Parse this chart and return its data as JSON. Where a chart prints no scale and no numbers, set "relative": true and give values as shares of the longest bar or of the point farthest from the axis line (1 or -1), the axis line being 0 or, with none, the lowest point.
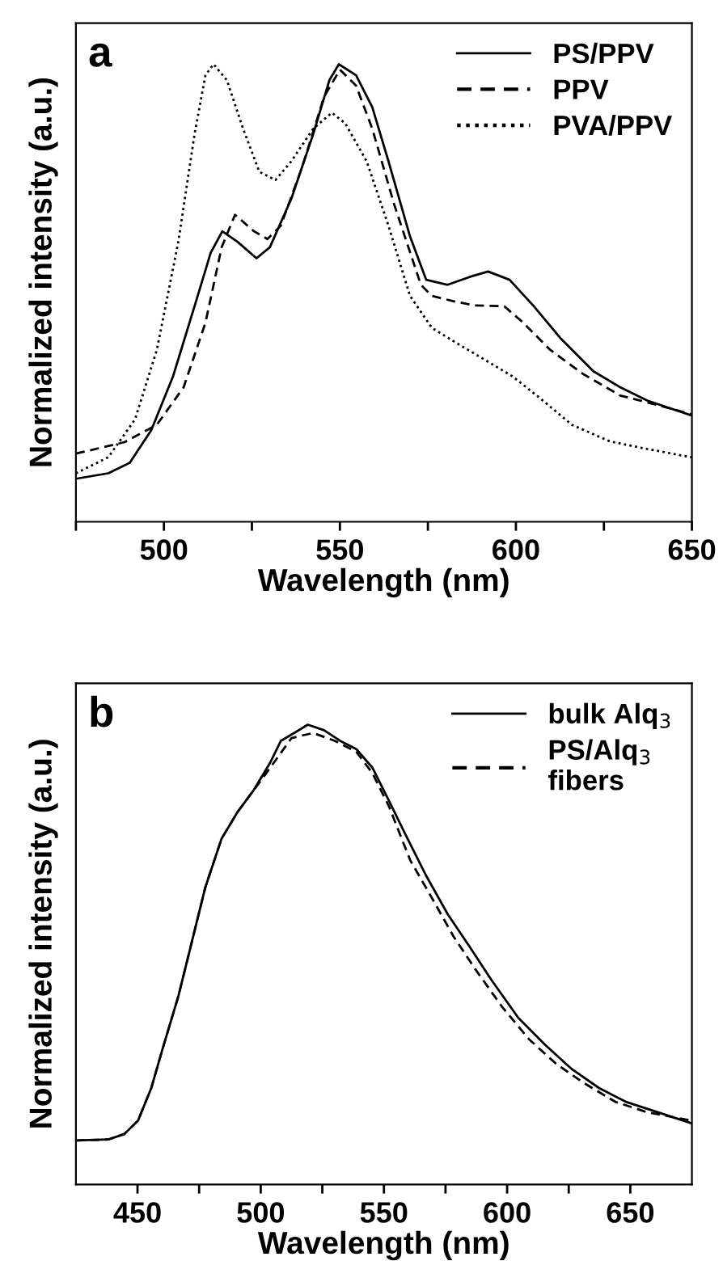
{
  "chart_data": [
    {
      "type": "line",
      "relative": true,
      "xlabel": "Wavelength (nm)",
      "ylabel": "Normalized intensity (a.u.)",
      "annotations": [
        "a"
      ],
      "legend": "top right",
      "marker": "none",
      "xlim": [
        475,
        650
      ],
      "xticks": [
        {
          "value": 475,
          "label": null
        },
        500,
        {
          "value": 525,
          "label": null
        },
        550,
        {
          "value": 575,
          "label": null
        },
        600,
        {
          "value": 625,
          "label": null
        },
        650
      ],
      "series": [
        {
          "name": "PS/PPV",
          "color": "#000000",
          "line_style": "solid",
          "x": [
            475,
            484.2,
            490.3,
            496.4,
            502.6,
            508.7,
            513.3,
            516.6,
            520.9,
            526.3,
            530.1,
            536.2,
            542.4,
            547.0,
            549.7,
            554.6,
            559.2,
            563.8,
            569.9,
            574.5,
            580.6,
            586.8,
            592.1,
            598.2,
            605.1,
            612.8,
            622.0,
            629.6,
            637.3,
            650
          ],
          "values": [
            0.094,
            0.106,
            0.129,
            0.2,
            0.318,
            0.471,
            0.588,
            0.635,
            0.612,
            0.576,
            0.6,
            0.706,
            0.847,
            0.965,
            1.0,
            0.976,
            0.906,
            0.788,
            0.624,
            0.529,
            0.518,
            0.535,
            0.547,
            0.529,
            0.471,
            0.4,
            0.329,
            0.294,
            0.265,
            0.232
          ]
        },
        {
          "name": "PPV",
          "color": "#000000",
          "line_style": "dashed",
          "x": [
            475,
            488.8,
            498,
            505.6,
            511.8,
            516.4,
            520.2,
            525.6,
            529.4,
            533.2,
            539.3,
            545.5,
            550,
            554.6,
            559.2,
            565.4,
            573,
            576.1,
            582.2,
            588.3,
            596.7,
            602.1,
            609.7,
            618.9,
            629.6,
            637.3,
            650
          ],
          "values": [
            0.149,
            0.174,
            0.212,
            0.294,
            0.435,
            0.6,
            0.671,
            0.635,
            0.618,
            0.647,
            0.776,
            0.929,
            0.988,
            0.953,
            0.859,
            0.694,
            0.518,
            0.494,
            0.482,
            0.473,
            0.471,
            0.435,
            0.376,
            0.324,
            0.276,
            0.261,
            0.235
          ]
        },
        {
          "name": "PVA/PPV",
          "color": "#000000",
          "line_style": "dotted",
          "x": [
            475,
            484.2,
            491.8,
            498,
            504.1,
            508.7,
            511.8,
            514.1,
            517.9,
            522.5,
            527.1,
            531.7,
            536.2,
            542.4,
            547.7,
            551.5,
            557.6,
            563.8,
            569.9,
            576.1,
            583.7,
            591.4,
            599,
            606.7,
            615.9,
            626.6,
            637.3,
            650
          ],
          "values": [
            0.106,
            0.141,
            0.224,
            0.376,
            0.612,
            0.847,
            0.976,
            1.0,
            0.965,
            0.859,
            0.765,
            0.747,
            0.788,
            0.859,
            0.894,
            0.871,
            0.788,
            0.647,
            0.494,
            0.424,
            0.388,
            0.353,
            0.318,
            0.271,
            0.212,
            0.176,
            0.159,
            0.141
          ]
        }
      ]
    },
    {
      "type": "line",
      "relative": true,
      "xlabel": "Wavelength (nm)",
      "ylabel": "Normalized intensity (a.u.)",
      "annotations": [
        "b"
      ],
      "legend": "top right",
      "marker": "none",
      "xlim": [
        425,
        675
      ],
      "xticks": [
        450,
        {
          "value": 475,
          "label": null
        },
        500,
        {
          "value": 525,
          "label": null
        },
        550,
        {
          "value": 575,
          "label": null
        },
        600,
        {
          "value": 625,
          "label": null
        },
        650
      ],
      "series": [
        {
          "name": "bulk Alq$_{3}$",
          "color": "#000000",
          "line_style": "solid",
          "x": [
            425,
            438.1,
            444.7,
            450.2,
            455.6,
            460,
            466.6,
            471,
            477.5,
            484.1,
            490.7,
            497.2,
            503.8,
            508.2,
            513.6,
            519.1,
            525.7,
            532.2,
            538.8,
            545.4,
            552,
            558.5,
            567.3,
            576,
            584.8,
            593.5,
            604.5,
            615.4,
            626.3,
            637.3,
            648.2,
            661.3,
            675
          ],
          "values": [
            0.096,
            0.098,
            0.11,
            0.139,
            0.21,
            0.292,
            0.41,
            0.505,
            0.646,
            0.752,
            0.811,
            0.858,
            0.917,
            0.965,
            0.982,
            1.0,
            0.988,
            0.965,
            0.947,
            0.906,
            0.835,
            0.764,
            0.67,
            0.587,
            0.517,
            0.446,
            0.363,
            0.304,
            0.251,
            0.21,
            0.18,
            0.157,
            0.133
          ]
        },
        {
          "name": "PS/Alq$_{3}$\nfibers",
          "color": "#000000",
          "line_style": "dashed",
          "x": [
            425,
            438.1,
            444.7,
            450.2,
            455.6,
            460,
            466.6,
            471,
            477.5,
            484.1,
            490.7,
            497.2,
            503.8,
            512.5,
            521.3,
            530,
            538.8,
            545.4,
            552,
            560.7,
            569.5,
            578.2,
            587,
            597.9,
            608.9,
            619.8,
            630.8,
            643.9,
            657,
            675
          ],
          "values": [
            0.096,
            0.098,
            0.11,
            0.139,
            0.21,
            0.292,
            0.41,
            0.505,
            0.646,
            0.752,
            0.811,
            0.858,
            0.906,
            0.971,
            0.982,
            0.965,
            0.941,
            0.894,
            0.823,
            0.705,
            0.623,
            0.54,
            0.469,
            0.387,
            0.316,
            0.263,
            0.222,
            0.18,
            0.157,
            0.139
          ]
        }
      ]
    }
  ]
}
